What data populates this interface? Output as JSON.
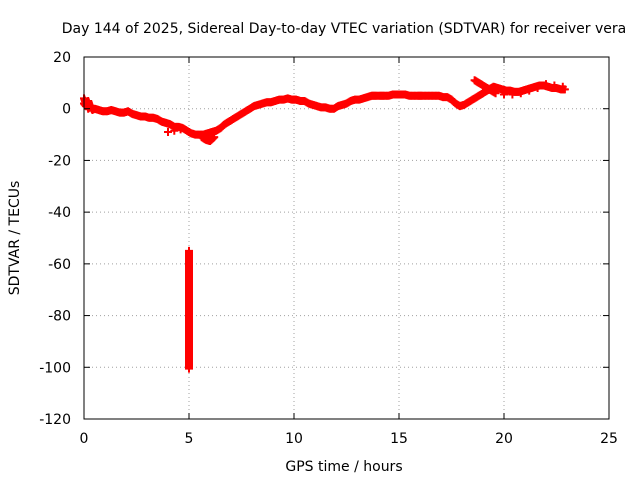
{
  "chart_data": {
    "type": "scatter",
    "title": "Day 144 of 2025, Sidereal Day-to-day VTEC variation (SDTVAR) for receiver vera",
    "xlabel": "GPS time / hours",
    "ylabel": "SDTVAR / TECUs",
    "xlim": [
      0,
      25
    ],
    "ylim": [
      -120,
      20
    ],
    "xticks": [
      0,
      5,
      10,
      15,
      20,
      25
    ],
    "yticks": [
      -120,
      -100,
      -80,
      -60,
      -40,
      -20,
      0,
      20
    ],
    "grid": true,
    "marker": "+",
    "series": [
      {
        "name": "SDTVAR",
        "color": "#ff0000",
        "x": [
          0.0,
          0.05,
          0.1,
          0.15,
          0.2,
          0.3,
          0.4,
          0.5,
          0.7,
          0.9,
          1.1,
          1.3,
          1.5,
          1.7,
          1.9,
          2.1,
          2.3,
          2.5,
          2.7,
          2.9,
          3.1,
          3.3,
          3.5,
          3.7,
          3.9,
          4.1,
          4.3,
          4.5,
          4.7,
          4.9,
          5.1,
          5.3,
          5.5,
          5.7,
          5.9,
          6.1,
          6.3,
          6.5,
          6.7,
          6.9,
          7.1,
          7.3,
          7.5,
          7.7,
          7.9,
          8.1,
          8.3,
          8.5,
          8.7,
          8.9,
          9.1,
          9.3,
          9.5,
          9.7,
          9.9,
          10.1,
          10.3,
          10.5,
          10.7,
          10.9,
          11.1,
          11.3,
          11.5,
          11.7,
          11.9,
          12.1,
          12.3,
          12.5,
          12.7,
          12.9,
          13.1,
          13.3,
          13.5,
          13.7,
          13.9,
          14.1,
          14.3,
          14.5,
          14.7,
          14.9,
          15.1,
          15.3,
          15.5,
          15.7,
          15.9,
          16.1,
          16.3,
          16.5,
          16.7,
          16.9,
          17.1,
          17.3,
          17.5,
          17.7,
          17.9,
          18.1,
          18.3,
          18.5,
          18.7,
          18.9,
          19.1,
          19.3,
          19.5,
          19.7,
          19.9,
          20.1,
          20.3,
          20.5,
          20.7,
          20.9,
          21.1,
          21.3,
          21.5,
          21.7,
          21.9,
          22.1,
          22.3,
          22.5,
          22.7,
          22.9,
          18.6,
          18.8,
          19.0,
          19.2,
          19.4,
          19.6,
          20.0,
          20.4,
          20.8,
          21.2,
          21.6,
          22.0,
          22.4,
          22.8,
          0.0,
          0.1,
          0.2,
          0.3,
          4.0,
          4.3,
          4.6,
          5.6,
          5.8,
          6.0,
          6.2,
          5.0,
          5.0,
          5.0
        ],
        "y": [
          4,
          3,
          1,
          2,
          0,
          1,
          -0.5,
          0,
          -0.5,
          -1,
          -1,
          -0.5,
          -1,
          -1.5,
          -1.5,
          -1,
          -2,
          -2.5,
          -3,
          -3,
          -3.5,
          -3.5,
          -4,
          -5,
          -5.5,
          -6,
          -7,
          -7,
          -7.5,
          -8.5,
          -9.5,
          -10,
          -10,
          -10,
          -9.5,
          -9,
          -8.5,
          -7.5,
          -6,
          -5,
          -4,
          -3,
          -2,
          -1,
          0,
          1,
          1.5,
          2,
          2.5,
          2.5,
          3,
          3.5,
          3.5,
          4,
          3.5,
          3.5,
          3,
          3,
          2,
          1.5,
          1,
          0.5,
          0.5,
          0,
          0,
          1,
          1.5,
          2,
          3,
          3.5,
          3.5,
          4,
          4.5,
          5,
          5,
          5,
          5,
          5,
          5.5,
          5.5,
          5.5,
          5.5,
          5,
          5,
          5,
          5,
          5,
          5,
          5,
          5,
          4.5,
          4.5,
          3.5,
          2,
          1,
          1.5,
          2.5,
          3.5,
          4.5,
          5.5,
          6.5,
          7.5,
          8.5,
          8,
          7.5,
          7,
          7,
          6.5,
          6.5,
          7,
          7.5,
          8,
          8.5,
          9,
          9,
          8.5,
          8,
          8,
          7.5,
          7.5,
          11,
          10,
          9,
          8,
          7,
          6,
          5.5,
          5.5,
          6,
          7,
          8,
          9.5,
          9,
          8.5,
          2,
          1,
          3,
          0.5,
          -9,
          -8.5,
          -8,
          -11,
          -12,
          -12.5,
          -11,
          -55,
          -62.5,
          -100.5
        ]
      }
    ]
  }
}
